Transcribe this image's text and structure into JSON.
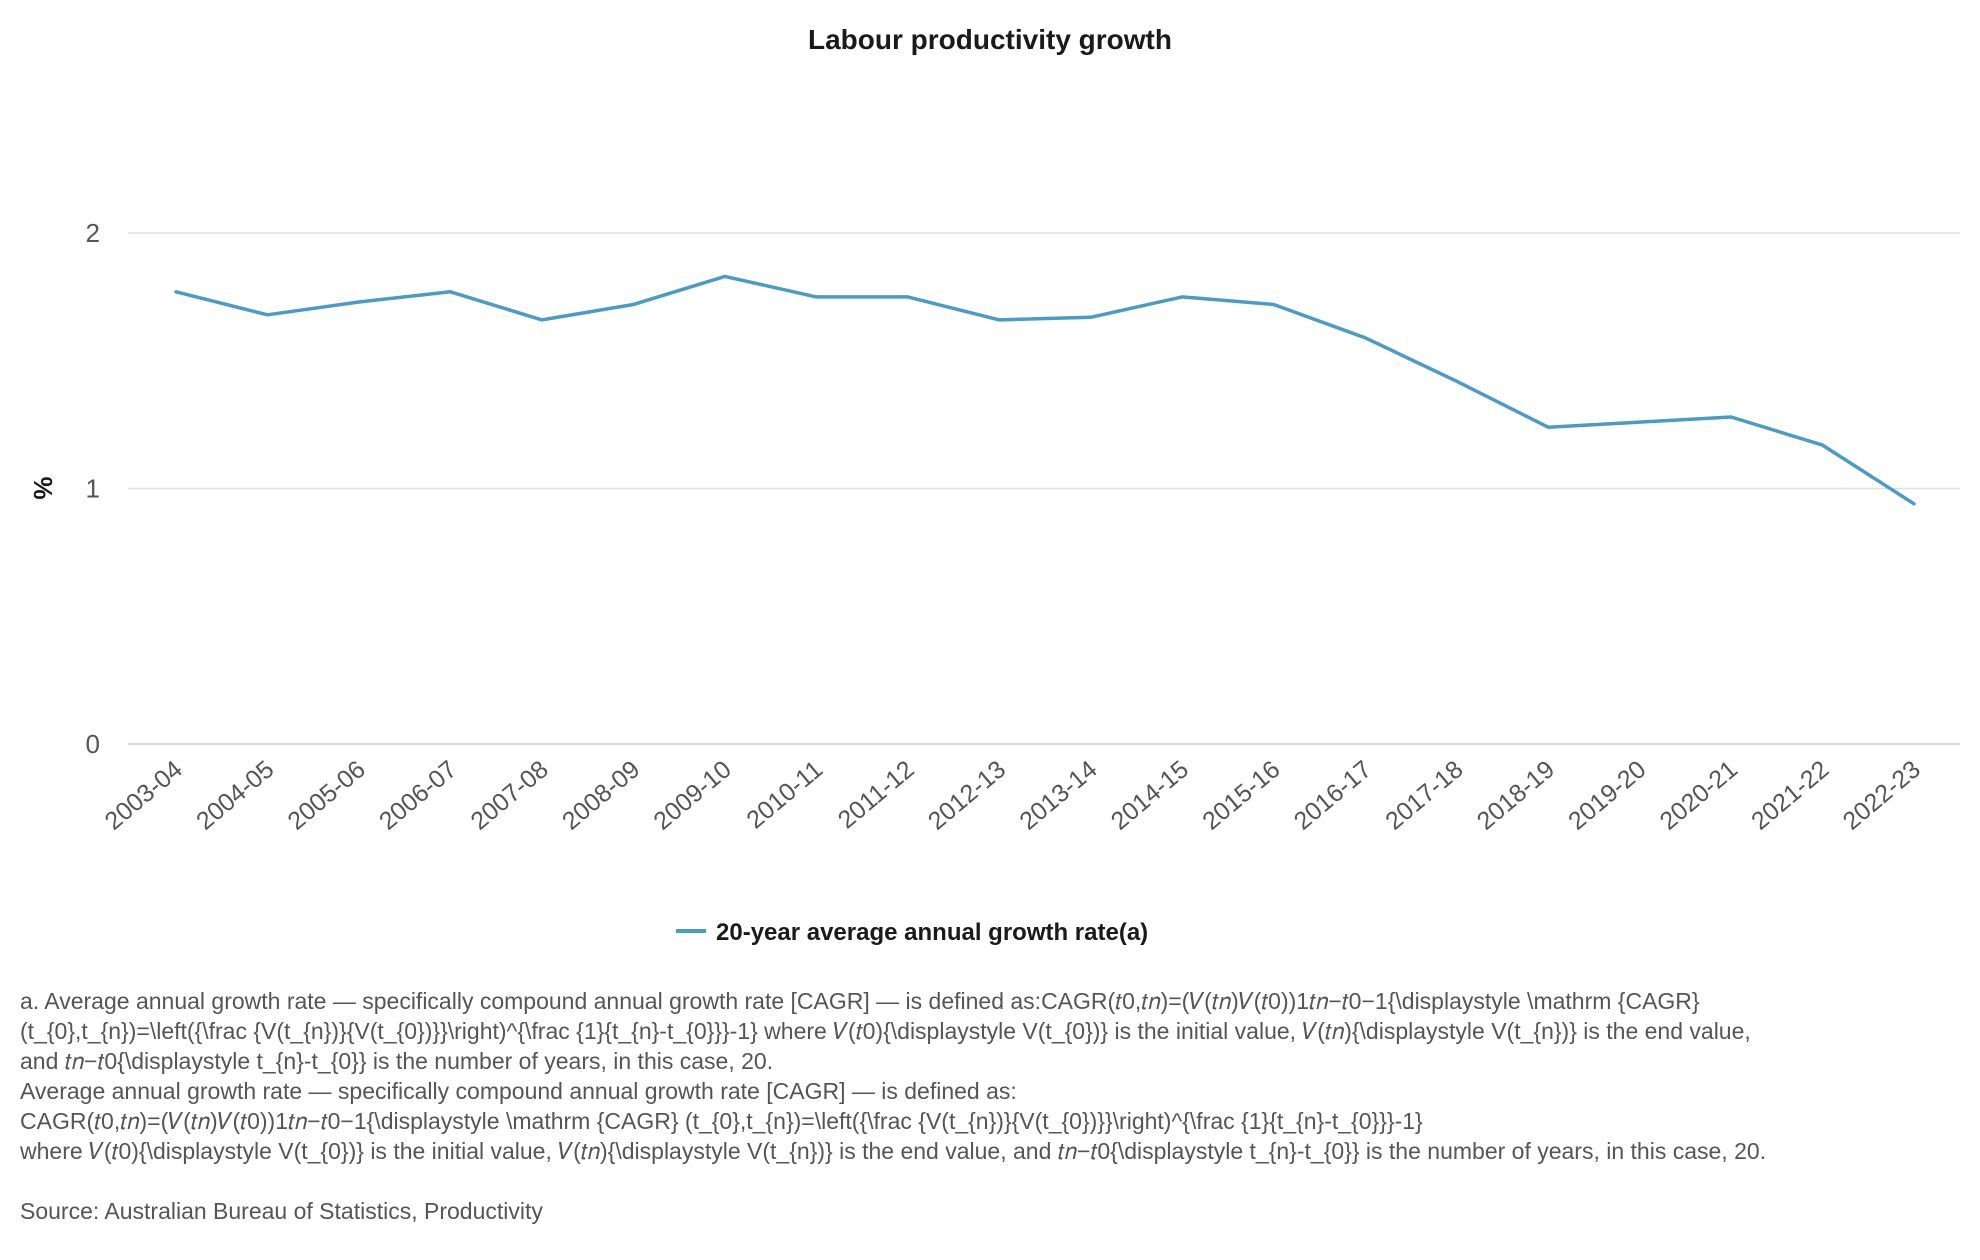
{
  "chart_data": {
    "type": "line",
    "title": "Labour productivity growth",
    "xlabel": "",
    "ylabel": "%",
    "ylim": [
      0,
      2
    ],
    "yticks": [
      "0",
      "1",
      "2"
    ],
    "grid": true,
    "legend_position": "bottom",
    "categories": [
      "2003-04",
      "2004-05",
      "2005-06",
      "2006-07",
      "2007-08",
      "2008-09",
      "2009-10",
      "2010-11",
      "2011-12",
      "2012-13",
      "2013-14",
      "2014-15",
      "2015-16",
      "2016-17",
      "2017-18",
      "2018-19",
      "2019-20",
      "2020-21",
      "2021-22",
      "2022-23"
    ],
    "series": [
      {
        "name": "20-year average annual growth rate(a)",
        "color": "#4a9cc6",
        "values": [
          1.77,
          1.68,
          1.73,
          1.77,
          1.66,
          1.72,
          1.83,
          1.75,
          1.75,
          1.66,
          1.67,
          1.75,
          1.72,
          1.59,
          1.42,
          1.24,
          1.26,
          1.28,
          1.17,
          0.94
        ]
      }
    ]
  },
  "footnote": {
    "line1": "a. Average annual growth rate — specifically compound annual growth rate [CAGR] — is defined as:CAGR(𝑡0,𝑡𝑛)=(𝑉(𝑡𝑛)𝑉(𝑡0))1𝑡𝑛−𝑡0−1{\\displaystyle \\mathrm {CAGR}",
    "line2": "(t_{0},t_{n})=\\left({\\frac {V(t_{n})}{V(t_{0})}}\\right)^{\\frac {1}{t_{n}-t_{0}}}-1} where 𝑉(𝑡0){\\displaystyle V(t_{0})} is the initial value, 𝑉(𝑡𝑛){\\displaystyle V(t_{n})} is the end value,",
    "line3": "and 𝑡𝑛−𝑡0{\\displaystyle t_{n}-t_{0}} is the number of years, in this case, 20.",
    "line4": "Average annual growth rate — specifically compound annual growth rate [CAGR] — is defined as:",
    "line5": "CAGR(𝑡0,𝑡𝑛)=(𝑉(𝑡𝑛)𝑉(𝑡0))1𝑡𝑛−𝑡0−1{\\displaystyle \\mathrm {CAGR} (t_{0},t_{n})=\\left({\\frac {V(t_{n})}{V(t_{0})}}\\right)^{\\frac {1}{t_{n}-t_{0}}}-1}",
    "line6": "where 𝑉(𝑡0){\\displaystyle V(t_{0})} is the initial value, 𝑉(𝑡𝑛){\\displaystyle V(t_{n})} is the end value, and 𝑡𝑛−𝑡0{\\displaystyle t_{n}-t_{0}} is the number of years, in this case, 20."
  },
  "source": "Source: Australian Bureau of Statistics, Productivity"
}
